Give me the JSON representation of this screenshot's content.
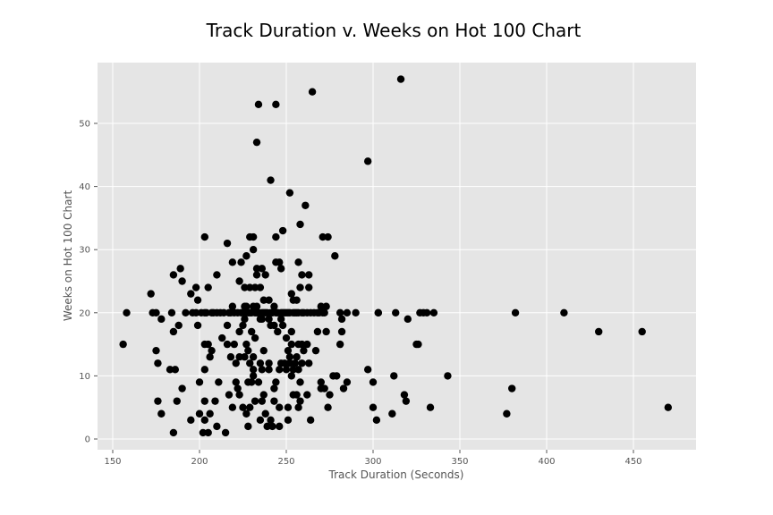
{
  "chart_data": {
    "type": "scatter",
    "title": "Track Duration v. Weeks on Hot 100 Chart",
    "xlabel": "Track Duration (Seconds)",
    "ylabel": "Weeks on Hot 100 Chart",
    "xlim": [
      140,
      485
    ],
    "ylim": [
      -1.7,
      59.5
    ],
    "xticks": [
      150,
      200,
      250,
      300,
      350,
      400,
      450
    ],
    "yticks": [
      0,
      10,
      20,
      30,
      40,
      50
    ],
    "grid": true,
    "legend": null,
    "marker_color": "#000000",
    "background_color": "#E5E5E5",
    "grid_color": "#FFFFFF",
    "points": [
      [
        156,
        15
      ],
      [
        158,
        20
      ],
      [
        172,
        23
      ],
      [
        173,
        20
      ],
      [
        175,
        20
      ],
      [
        175,
        14
      ],
      [
        176,
        12
      ],
      [
        176,
        6
      ],
      [
        178,
        19
      ],
      [
        178,
        4
      ],
      [
        183,
        11
      ],
      [
        184,
        20
      ],
      [
        185,
        26
      ],
      [
        185,
        17
      ],
      [
        185,
        1
      ],
      [
        186,
        11
      ],
      [
        187,
        6
      ],
      [
        188,
        18
      ],
      [
        189,
        27
      ],
      [
        190,
        25
      ],
      [
        190,
        8
      ],
      [
        192,
        20
      ],
      [
        195,
        23
      ],
      [
        195,
        3
      ],
      [
        196,
        20
      ],
      [
        198,
        24
      ],
      [
        198,
        20
      ],
      [
        199,
        22
      ],
      [
        199,
        18
      ],
      [
        200,
        9
      ],
      [
        200,
        4
      ],
      [
        201,
        20
      ],
      [
        202,
        1
      ],
      [
        203,
        32
      ],
      [
        203,
        20
      ],
      [
        203,
        15
      ],
      [
        203,
        11
      ],
      [
        203,
        6
      ],
      [
        203,
        3
      ],
      [
        204,
        20
      ],
      [
        205,
        24
      ],
      [
        205,
        15
      ],
      [
        205,
        1
      ],
      [
        206,
        13
      ],
      [
        206,
        4
      ],
      [
        207,
        20
      ],
      [
        207,
        14
      ],
      [
        208,
        20
      ],
      [
        209,
        6
      ],
      [
        210,
        26
      ],
      [
        210,
        20
      ],
      [
        210,
        2
      ],
      [
        211,
        9
      ],
      [
        212,
        20
      ],
      [
        213,
        16
      ],
      [
        214,
        20
      ],
      [
        215,
        1
      ],
      [
        216,
        31
      ],
      [
        216,
        18
      ],
      [
        216,
        15
      ],
      [
        217,
        7
      ],
      [
        217,
        20
      ],
      [
        218,
        20
      ],
      [
        218,
        13
      ],
      [
        219,
        28
      ],
      [
        219,
        21
      ],
      [
        219,
        5
      ],
      [
        220,
        15
      ],
      [
        220,
        20
      ],
      [
        221,
        12
      ],
      [
        221,
        9
      ],
      [
        222,
        20
      ],
      [
        222,
        8
      ],
      [
        223,
        25
      ],
      [
        223,
        17
      ],
      [
        223,
        13
      ],
      [
        223,
        7
      ],
      [
        224,
        28
      ],
      [
        224,
        20
      ],
      [
        225,
        18
      ],
      [
        225,
        5
      ],
      [
        226,
        24
      ],
      [
        226,
        21
      ],
      [
        226,
        19
      ],
      [
        226,
        13
      ],
      [
        226,
        20
      ],
      [
        227,
        29
      ],
      [
        227,
        21
      ],
      [
        227,
        15
      ],
      [
        227,
        4
      ],
      [
        228,
        20
      ],
      [
        228,
        14
      ],
      [
        228,
        9
      ],
      [
        228,
        2
      ],
      [
        229,
        32
      ],
      [
        229,
        24
      ],
      [
        229,
        20
      ],
      [
        229,
        12
      ],
      [
        229,
        5
      ],
      [
        230,
        20
      ],
      [
        230,
        17
      ],
      [
        230,
        9
      ],
      [
        231,
        32
      ],
      [
        231,
        30
      ],
      [
        231,
        21
      ],
      [
        231,
        13
      ],
      [
        231,
        11
      ],
      [
        231,
        10
      ],
      [
        232,
        24
      ],
      [
        232,
        20
      ],
      [
        232,
        16
      ],
      [
        232,
        6
      ],
      [
        233,
        47
      ],
      [
        233,
        27
      ],
      [
        233,
        26
      ],
      [
        233,
        21
      ],
      [
        233,
        20
      ],
      [
        234,
        53
      ],
      [
        234,
        20
      ],
      [
        234,
        9
      ],
      [
        235,
        24
      ],
      [
        235,
        19
      ],
      [
        235,
        12
      ],
      [
        235,
        3
      ],
      [
        236,
        27
      ],
      [
        236,
        20
      ],
      [
        236,
        19
      ],
      [
        236,
        11
      ],
      [
        236,
        6
      ],
      [
        237,
        22
      ],
      [
        237,
        20
      ],
      [
        237,
        14
      ],
      [
        237,
        7
      ],
      [
        238,
        26
      ],
      [
        238,
        20
      ],
      [
        238,
        4
      ],
      [
        239,
        20
      ],
      [
        239,
        2
      ],
      [
        240,
        22
      ],
      [
        240,
        19
      ],
      [
        240,
        12
      ],
      [
        240,
        11
      ],
      [
        241,
        41
      ],
      [
        241,
        20
      ],
      [
        241,
        18
      ],
      [
        241,
        3
      ],
      [
        242,
        20
      ],
      [
        242,
        2
      ],
      [
        243,
        21
      ],
      [
        243,
        18
      ],
      [
        243,
        8
      ],
      [
        243,
        6
      ],
      [
        244,
        53
      ],
      [
        244,
        32
      ],
      [
        244,
        28
      ],
      [
        244,
        20
      ],
      [
        244,
        9
      ],
      [
        245,
        20
      ],
      [
        245,
        17
      ],
      [
        246,
        28
      ],
      [
        246,
        11
      ],
      [
        246,
        5
      ],
      [
        246,
        2
      ],
      [
        247,
        27
      ],
      [
        247,
        20
      ],
      [
        247,
        19
      ],
      [
        247,
        12
      ],
      [
        248,
        33
      ],
      [
        248,
        20
      ],
      [
        248,
        18
      ],
      [
        249,
        20
      ],
      [
        249,
        12
      ],
      [
        250,
        20
      ],
      [
        250,
        16
      ],
      [
        250,
        11
      ],
      [
        251,
        20
      ],
      [
        251,
        14
      ],
      [
        251,
        5
      ],
      [
        251,
        3
      ],
      [
        252,
        39
      ],
      [
        252,
        20
      ],
      [
        252,
        12
      ],
      [
        252,
        13
      ],
      [
        253,
        23
      ],
      [
        253,
        17
      ],
      [
        253,
        15
      ],
      [
        253,
        10
      ],
      [
        254,
        22
      ],
      [
        254,
        20
      ],
      [
        254,
        11
      ],
      [
        254,
        7
      ],
      [
        255,
        20
      ],
      [
        255,
        12
      ],
      [
        256,
        22
      ],
      [
        256,
        20
      ],
      [
        256,
        13
      ],
      [
        256,
        7
      ],
      [
        257,
        28
      ],
      [
        257,
        20
      ],
      [
        257,
        15
      ],
      [
        257,
        11
      ],
      [
        257,
        5
      ],
      [
        258,
        34
      ],
      [
        258,
        24
      ],
      [
        258,
        9
      ],
      [
        258,
        6
      ],
      [
        259,
        26
      ],
      [
        259,
        20
      ],
      [
        259,
        15
      ],
      [
        259,
        12
      ],
      [
        260,
        20
      ],
      [
        260,
        14
      ],
      [
        261,
        37
      ],
      [
        262,
        20
      ],
      [
        262,
        15
      ],
      [
        262,
        7
      ],
      [
        263,
        26
      ],
      [
        263,
        24
      ],
      [
        263,
        12
      ],
      [
        264,
        20
      ],
      [
        264,
        3
      ],
      [
        265,
        55
      ],
      [
        266,
        20
      ],
      [
        267,
        14
      ],
      [
        268,
        20
      ],
      [
        268,
        17
      ],
      [
        269,
        20
      ],
      [
        270,
        21
      ],
      [
        270,
        9
      ],
      [
        270,
        8
      ],
      [
        271,
        32
      ],
      [
        271,
        20
      ],
      [
        272,
        20
      ],
      [
        272,
        8
      ],
      [
        273,
        21
      ],
      [
        273,
        17
      ],
      [
        274,
        32
      ],
      [
        274,
        5
      ],
      [
        275,
        7
      ],
      [
        277,
        10
      ],
      [
        278,
        29
      ],
      [
        279,
        10
      ],
      [
        281,
        20
      ],
      [
        281,
        15
      ],
      [
        282,
        19
      ],
      [
        282,
        17
      ],
      [
        283,
        8
      ],
      [
        285,
        20
      ],
      [
        285,
        9
      ],
      [
        290,
        20
      ],
      [
        297,
        44
      ],
      [
        297,
        11
      ],
      [
        300,
        9
      ],
      [
        300,
        5
      ],
      [
        302,
        3
      ],
      [
        303,
        20
      ],
      [
        303,
        20
      ],
      [
        311,
        4
      ],
      [
        312,
        10
      ],
      [
        313,
        20
      ],
      [
        318,
        7
      ],
      [
        319,
        6
      ],
      [
        320,
        19
      ],
      [
        325,
        15
      ],
      [
        326,
        15
      ],
      [
        327,
        20
      ],
      [
        329,
        20
      ],
      [
        331,
        20
      ],
      [
        333,
        5
      ],
      [
        335,
        20
      ],
      [
        343,
        10
      ],
      [
        316,
        57
      ],
      [
        377,
        4
      ],
      [
        380,
        8
      ],
      [
        382,
        20
      ],
      [
        410,
        20
      ],
      [
        430,
        17
      ],
      [
        455,
        17
      ],
      [
        470,
        5
      ]
    ]
  }
}
